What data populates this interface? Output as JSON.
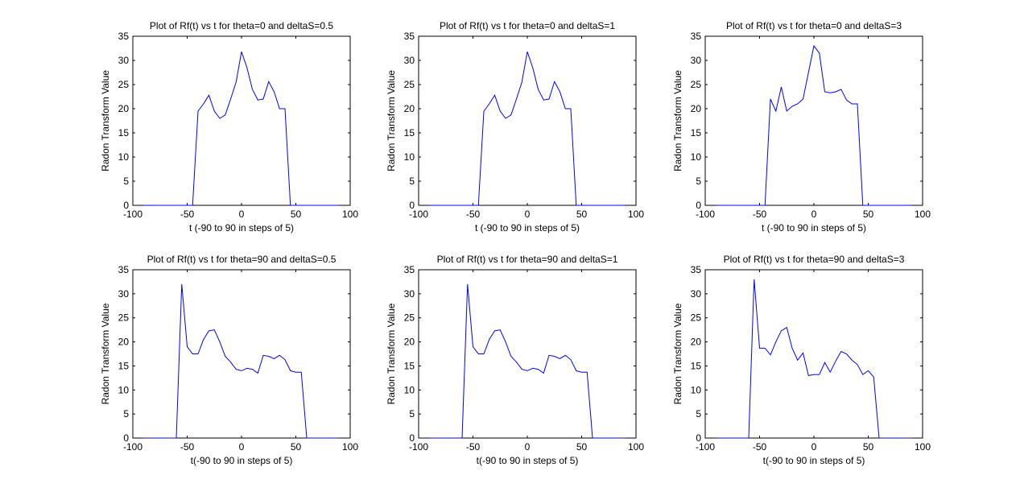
{
  "chart_data": [
    {
      "type": "line",
      "title": "Plot of Rf(t) vs t for theta=0 and deltaS=0.5",
      "xlabel": "t (-90 to 90 in steps of 5)",
      "ylabel": "Radon Transform Value",
      "xlim": [
        -100,
        100
      ],
      "ylim": [
        0,
        35
      ],
      "xticks": [
        -100,
        -50,
        0,
        50,
        100
      ],
      "yticks": [
        0,
        5,
        10,
        15,
        20,
        25,
        30,
        35
      ],
      "grid": false,
      "color": "#0000ff",
      "x": [
        -90,
        -85,
        -80,
        -75,
        -70,
        -65,
        -60,
        -55,
        -50,
        -45,
        -40,
        -35,
        -30,
        -25,
        -20,
        -15,
        -10,
        -5,
        0,
        5,
        10,
        15,
        20,
        25,
        30,
        35,
        40,
        45,
        50,
        55,
        60,
        65,
        70,
        75,
        80,
        85,
        90
      ],
      "values": [
        0,
        0,
        0,
        0,
        0,
        0,
        0,
        0,
        0,
        0,
        19.5,
        21,
        22.8,
        19.5,
        18,
        18.7,
        22,
        25.5,
        31.8,
        28.5,
        24,
        21.8,
        22,
        25.6,
        23.5,
        20,
        20,
        0,
        0,
        0,
        0,
        0,
        0,
        0,
        0,
        0,
        0
      ]
    },
    {
      "type": "line",
      "title": "Plot of Rf(t) vs t for theta=0 and deltaS=1",
      "xlabel": "t (-90 to 90 in steps of 5)",
      "ylabel": "Radon Transform Value",
      "xlim": [
        -100,
        100
      ],
      "ylim": [
        0,
        35
      ],
      "xticks": [
        -100,
        -50,
        0,
        50,
        100
      ],
      "yticks": [
        0,
        5,
        10,
        15,
        20,
        25,
        30,
        35
      ],
      "grid": false,
      "color": "#0000ff",
      "x": [
        -90,
        -85,
        -80,
        -75,
        -70,
        -65,
        -60,
        -55,
        -50,
        -45,
        -40,
        -35,
        -30,
        -25,
        -20,
        -15,
        -10,
        -5,
        0,
        5,
        10,
        15,
        20,
        25,
        30,
        35,
        40,
        45,
        50,
        55,
        60,
        65,
        70,
        75,
        80,
        85,
        90
      ],
      "values": [
        0,
        0,
        0,
        0,
        0,
        0,
        0,
        0,
        0,
        0,
        19.5,
        21,
        22.8,
        19.5,
        18,
        18.7,
        22,
        25.5,
        31.8,
        28.5,
        24,
        21.8,
        22,
        25.6,
        23.5,
        20,
        20,
        0,
        0,
        0,
        0,
        0,
        0,
        0,
        0,
        0,
        0
      ]
    },
    {
      "type": "line",
      "title": "Plot of Rf(t) vs t for theta=0 and deltaS=3",
      "xlabel": "t (-90 to 90 in steps of 5)",
      "ylabel": "Radon Transform Value",
      "xlim": [
        -100,
        100
      ],
      "ylim": [
        0,
        35
      ],
      "xticks": [
        -100,
        -50,
        0,
        50,
        100
      ],
      "yticks": [
        0,
        5,
        10,
        15,
        20,
        25,
        30,
        35
      ],
      "grid": false,
      "color": "#0000ff",
      "x": [
        -90,
        -85,
        -80,
        -75,
        -70,
        -65,
        -60,
        -55,
        -50,
        -45,
        -40,
        -35,
        -30,
        -25,
        -20,
        -15,
        -10,
        -5,
        0,
        5,
        10,
        15,
        20,
        25,
        30,
        35,
        40,
        45,
        50,
        55,
        60,
        65,
        70,
        75,
        80,
        85,
        90
      ],
      "values": [
        0,
        0,
        0,
        0,
        0,
        0,
        0,
        0,
        0,
        0,
        22,
        19.5,
        24.5,
        19.5,
        20.5,
        21,
        22,
        27.5,
        33,
        31.5,
        23.5,
        23.3,
        23.5,
        24,
        21.8,
        21,
        21,
        0,
        0,
        0,
        0,
        0,
        0,
        0,
        0,
        0,
        0
      ]
    },
    {
      "type": "line",
      "title": "Plot of Rf(t) vs t for theta=90 and deltaS=0.5",
      "xlabel": "t(-90 to 90 in steps of 5)",
      "ylabel": "Radon Transform Value",
      "xlim": [
        -100,
        100
      ],
      "ylim": [
        0,
        35
      ],
      "xticks": [
        -100,
        -50,
        0,
        50,
        100
      ],
      "yticks": [
        0,
        5,
        10,
        15,
        20,
        25,
        30,
        35
      ],
      "grid": false,
      "color": "#0000ff",
      "x": [
        -90,
        -85,
        -80,
        -75,
        -70,
        -65,
        -60,
        -55,
        -50,
        -45,
        -40,
        -35,
        -30,
        -25,
        -20,
        -15,
        -10,
        -5,
        0,
        5,
        10,
        15,
        20,
        25,
        30,
        35,
        40,
        45,
        50,
        55,
        60,
        65,
        70,
        75,
        80,
        85,
        90
      ],
      "values": [
        0,
        0,
        0,
        0,
        0,
        0,
        0,
        32,
        19,
        17.5,
        17.5,
        20.5,
        22.3,
        22.5,
        20,
        17,
        15.8,
        14.3,
        14,
        14.5,
        14.3,
        13.5,
        17.2,
        17,
        16.5,
        17.2,
        16.3,
        14,
        13.7,
        13.7,
        0,
        0,
        0,
        0,
        0,
        0,
        0
      ]
    },
    {
      "type": "line",
      "title": "Plot of Rf(t) vs t for theta=90 and deltaS=1",
      "xlabel": "t(-90 to 90 in steps of 5)",
      "ylabel": "Radon Transform Value",
      "xlim": [
        -100,
        100
      ],
      "ylim": [
        0,
        35
      ],
      "xticks": [
        -100,
        -50,
        0,
        50,
        100
      ],
      "yticks": [
        0,
        5,
        10,
        15,
        20,
        25,
        30,
        35
      ],
      "grid": false,
      "color": "#0000ff",
      "x": [
        -90,
        -85,
        -80,
        -75,
        -70,
        -65,
        -60,
        -55,
        -50,
        -45,
        -40,
        -35,
        -30,
        -25,
        -20,
        -15,
        -10,
        -5,
        0,
        5,
        10,
        15,
        20,
        25,
        30,
        35,
        40,
        45,
        50,
        55,
        60,
        65,
        70,
        75,
        80,
        85,
        90
      ],
      "values": [
        0,
        0,
        0,
        0,
        0,
        0,
        0,
        32,
        19,
        17.5,
        17.5,
        20.5,
        22.3,
        22.5,
        20,
        17,
        15.8,
        14.3,
        14,
        14.5,
        14.3,
        13.5,
        17.2,
        17,
        16.5,
        17.2,
        16.3,
        14,
        13.7,
        13.7,
        0,
        0,
        0,
        0,
        0,
        0,
        0
      ]
    },
    {
      "type": "line",
      "title": "Plot of Rf(t) vs t for theta=90 and deltaS=3",
      "xlabel": "t(-90 to 90 in steps of 5)",
      "ylabel": "Radon Transform Value",
      "xlim": [
        -100,
        100
      ],
      "ylim": [
        0,
        35
      ],
      "xticks": [
        -100,
        -50,
        0,
        50,
        100
      ],
      "yticks": [
        0,
        5,
        10,
        15,
        20,
        25,
        30,
        35
      ],
      "grid": false,
      "color": "#0000ff",
      "x": [
        -90,
        -85,
        -80,
        -75,
        -70,
        -65,
        -60,
        -55,
        -50,
        -45,
        -40,
        -35,
        -30,
        -25,
        -20,
        -15,
        -10,
        -5,
        0,
        5,
        10,
        15,
        20,
        25,
        30,
        35,
        40,
        45,
        50,
        55,
        60,
        65,
        70,
        75,
        80,
        85,
        90
      ],
      "values": [
        0,
        0,
        0,
        0,
        0,
        0,
        0,
        33,
        18.7,
        18.7,
        17.3,
        20,
        22.3,
        23,
        18.7,
        16.2,
        17.7,
        13,
        13.2,
        13.2,
        15.7,
        13.7,
        16,
        18,
        17.5,
        16.2,
        15.3,
        13.2,
        14,
        12.7,
        0,
        0,
        0,
        0,
        0,
        0,
        0
      ]
    }
  ]
}
